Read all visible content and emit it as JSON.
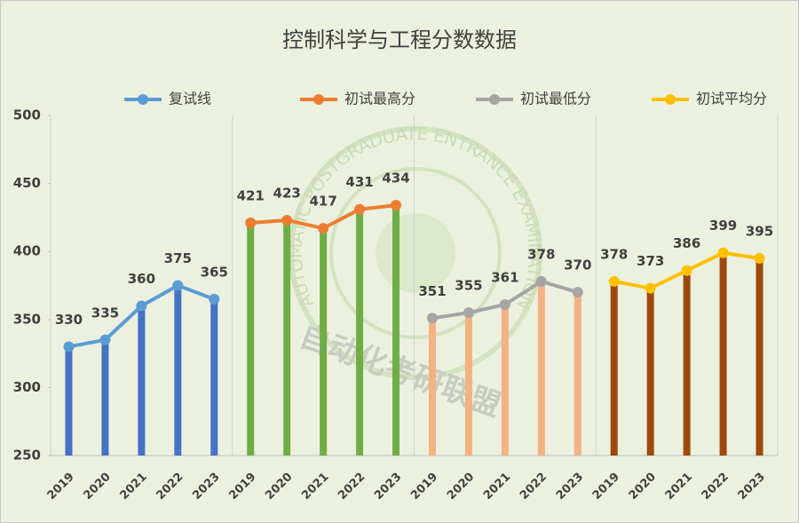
{
  "chart_data": {
    "type": "bar-line",
    "title": "控制科学与工程分数数据",
    "categories": [
      "2019",
      "2020",
      "2021",
      "2022",
      "2023",
      "2019",
      "2020",
      "2021",
      "2022",
      "2023",
      "2019",
      "2020",
      "2021",
      "2022",
      "2023",
      "2019",
      "2020",
      "2021",
      "2022",
      "2023"
    ],
    "series": [
      {
        "name": "复试线",
        "color": "#5b9bd5",
        "bar_color": "#4472c4",
        "values": [
          330,
          335,
          360,
          375,
          365,
          null,
          null,
          null,
          null,
          null,
          null,
          null,
          null,
          null,
          null,
          null,
          null,
          null,
          null,
          null
        ]
      },
      {
        "name": "初试最高分",
        "color": "#ed7d31",
        "bar_color": "#70ad47",
        "values": [
          null,
          null,
          null,
          null,
          null,
          421,
          423,
          417,
          431,
          434,
          null,
          null,
          null,
          null,
          null,
          null,
          null,
          null,
          null,
          null
        ]
      },
      {
        "name": "初试最低分",
        "color": "#a5a5a5",
        "bar_color": "#f4b183",
        "values": [
          null,
          null,
          null,
          null,
          null,
          null,
          null,
          null,
          null,
          null,
          351,
          355,
          361,
          378,
          370,
          null,
          null,
          null,
          null,
          null
        ]
      },
      {
        "name": "初试平均分",
        "color": "#ffc000",
        "bar_color": "#9e480e",
        "values": [
          null,
          null,
          null,
          null,
          null,
          null,
          null,
          null,
          null,
          null,
          null,
          null,
          null,
          null,
          null,
          378,
          373,
          386,
          399,
          395
        ]
      }
    ],
    "ylim": [
      250,
      500
    ],
    "yticks": [
      250,
      300,
      350,
      400,
      450,
      500
    ],
    "legend": "top",
    "watermark": {
      "ring": "AUTOMATIC POSTGRADUATE ENTRANCE EXAMINATION ALLIANCE",
      "text": "自动化考研联盟"
    }
  }
}
